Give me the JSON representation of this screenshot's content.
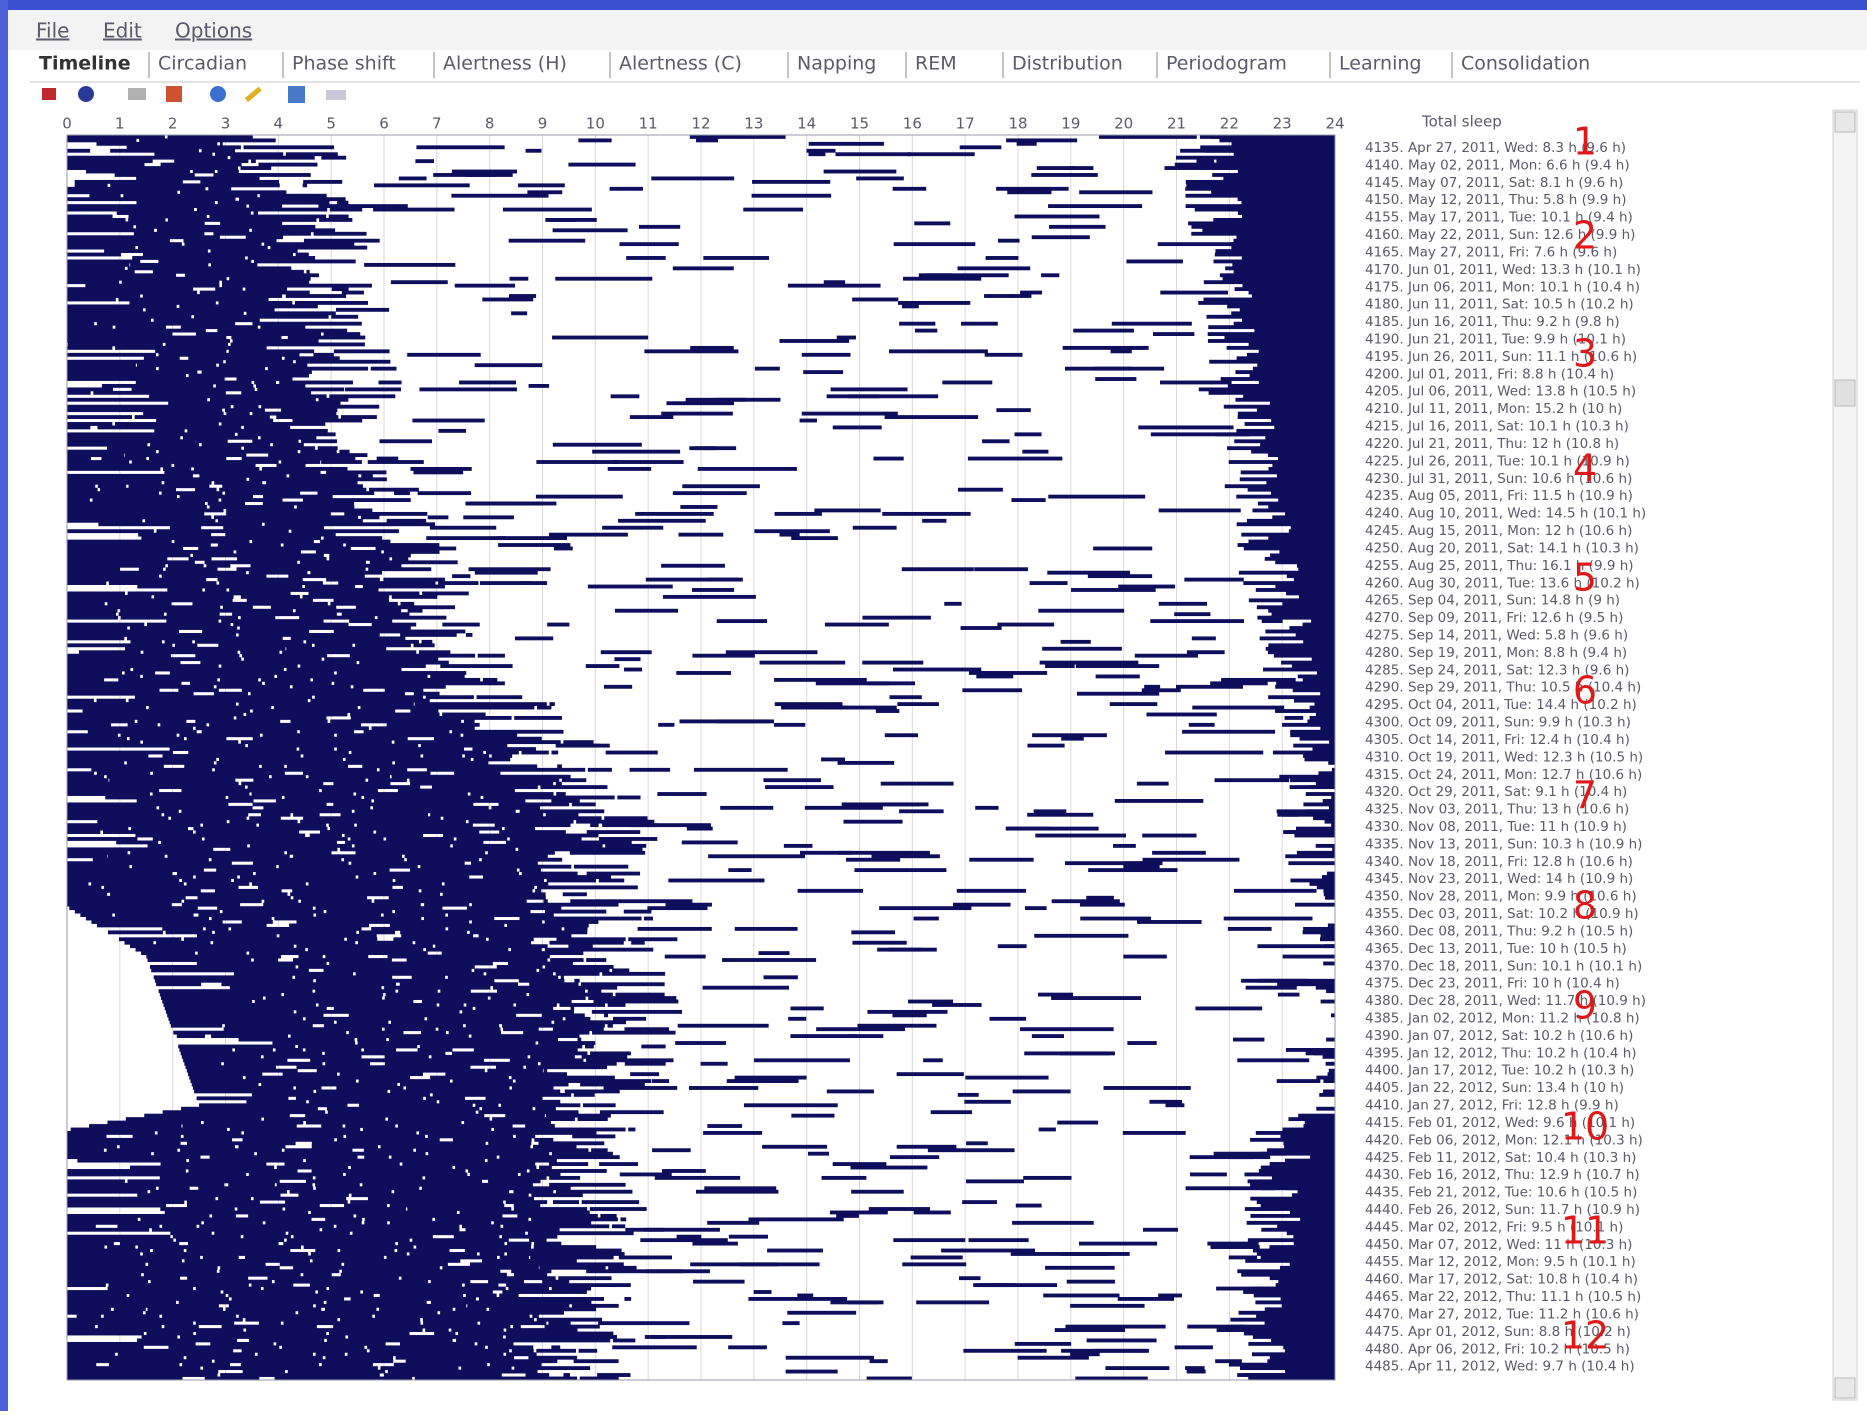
{
  "menu": [
    "File",
    "Edit",
    "Options"
  ],
  "tabs": [
    "Timeline",
    "Circadian",
    "Phase shift",
    "Alertness (H)",
    "Alertness (C)",
    "Napping",
    "REM",
    "Distribution",
    "Periodogram",
    "Learning",
    "Consolidation"
  ],
  "timeline": {
    "hours": [
      0,
      1,
      2,
      3,
      4,
      5,
      6,
      7,
      8,
      9,
      10,
      11,
      12,
      13,
      14,
      15,
      16,
      17,
      18,
      19,
      20,
      21,
      22,
      23,
      24
    ],
    "total_sleep_header": "Total sleep",
    "rows": [
      "4135. Apr 27, 2011, Wed: 8.3 h (9.6 h)",
      "4140. May 02, 2011, Mon: 6.6 h (9.4 h)",
      "4145. May 07, 2011, Sat: 8.1 h (9.6 h)",
      "4150. May 12, 2011, Thu: 5.8 h (9.9 h)",
      "4155. May 17, 2011, Tue: 10.1 h (9.4 h)",
      "4160. May 22, 2011, Sun: 12.6 h (9.9 h)",
      "4165. May 27, 2011, Fri: 7.6 h (9.6 h)",
      "4170. Jun 01, 2011, Wed: 13.3 h (10.1 h)",
      "4175. Jun 06, 2011, Mon: 10.1 h (10.4 h)",
      "4180. Jun 11, 2011, Sat: 10.5 h (10.2 h)",
      "4185. Jun 16, 2011, Thu: 9.2 h (9.8 h)",
      "4190. Jun 21, 2011, Tue: 9.9 h (10.1 h)",
      "4195. Jun 26, 2011, Sun: 11.1 h (10.6 h)",
      "4200. Jul 01, 2011, Fri: 8.8 h (10.4 h)",
      "4205. Jul 06, 2011, Wed: 13.8 h (10.5 h)",
      "4210. Jul 11, 2011, Mon: 15.2 h (10 h)",
      "4215. Jul 16, 2011, Sat: 10.1 h (10.3 h)",
      "4220. Jul 21, 2011, Thu: 12 h (10.8 h)",
      "4225. Jul 26, 2011, Tue: 10.1 h (10.9 h)",
      "4230. Jul 31, 2011, Sun: 10.6 h (10.6 h)",
      "4235. Aug 05, 2011, Fri: 11.5 h (10.9 h)",
      "4240. Aug 10, 2011, Wed: 14.5 h (10.1 h)",
      "4245. Aug 15, 2011, Mon: 12 h (10.6 h)",
      "4250. Aug 20, 2011, Sat: 14.1 h (10.3 h)",
      "4255. Aug 25, 2011, Thu: 16.1 h (9.9 h)",
      "4260. Aug 30, 2011, Tue: 13.6 h (10.2 h)",
      "4265. Sep 04, 2011, Sun: 14.8 h (9 h)",
      "4270. Sep 09, 2011, Fri: 12.6 h (9.5 h)",
      "4275. Sep 14, 2011, Wed: 5.8 h (9.6 h)",
      "4280. Sep 19, 2011, Mon: 8.8 h (9.4 h)",
      "4285. Sep 24, 2011, Sat: 12.3 h (9.6 h)",
      "4290. Sep 29, 2011, Thu: 10.5 h (10.4 h)",
      "4295. Oct 04, 2011, Tue: 14.4 h (10.2 h)",
      "4300. Oct 09, 2011, Sun: 9.9 h (10.3 h)",
      "4305. Oct 14, 2011, Fri: 12.4 h (10.4 h)",
      "4310. Oct 19, 2011, Wed: 12.3 h (10.5 h)",
      "4315. Oct 24, 2011, Mon: 12.7 h (10.6 h)",
      "4320. Oct 29, 2011, Sat: 9.1 h (10.4 h)",
      "4325. Nov 03, 2011, Thu: 13 h (10.6 h)",
      "4330. Nov 08, 2011, Tue: 11 h (10.9 h)",
      "4335. Nov 13, 2011, Sun: 10.3 h (10.9 h)",
      "4340. Nov 18, 2011, Fri: 12.8 h (10.6 h)",
      "4345. Nov 23, 2011, Wed: 14 h (10.9 h)",
      "4350. Nov 28, 2011, Mon: 9.9 h (10.6 h)",
      "4355. Dec 03, 2011, Sat: 10.2 h (10.9 h)",
      "4360. Dec 08, 2011, Thu: 9.2 h (10.5 h)",
      "4365. Dec 13, 2011, Tue: 10 h (10.5 h)",
      "4370. Dec 18, 2011, Sun: 10.1 h (10.1 h)",
      "4375. Dec 23, 2011, Fri: 10 h (10.4 h)",
      "4380. Dec 28, 2011, Wed: 11.7 h (10.9 h)",
      "4385. Jan 02, 2012, Mon: 11.2 h (10.8 h)",
      "4390. Jan 07, 2012, Sat: 10.2 h (10.6 h)",
      "4395. Jan 12, 2012, Thu: 10.2 h (10.4 h)",
      "4400. Jan 17, 2012, Tue: 10.2 h (10.3 h)",
      "4405. Jan 22, 2012, Sun: 13.4 h (10 h)",
      "4410. Jan 27, 2012, Fri: 12.8 h (9.9 h)",
      "4415. Feb 01, 2012, Wed: 9.6 h (10.1 h)",
      "4420. Feb 06, 2012, Mon: 12.1 h (10.3 h)",
      "4425. Feb 11, 2012, Sat: 10.4 h (10.3 h)",
      "4430. Feb 16, 2012, Thu: 12.9 h (10.7 h)",
      "4435. Feb 21, 2012, Tue: 10.6 h (10.5 h)",
      "4440. Feb 26, 2012, Sun: 11.7 h (10.9 h)",
      "4445. Mar 02, 2012, Fri: 9.5 h (10.1 h)",
      "4450. Mar 07, 2012, Wed: 11 h (10.3 h)",
      "4455. Mar 12, 2012, Mon: 9.5 h (10.1 h)",
      "4460. Mar 17, 2012, Sat: 10.8 h (10.4 h)",
      "4465. Mar 22, 2012, Thu: 11.1 h (10.5 h)",
      "4470. Mar 27, 2012, Tue: 11.2 h (10.6 h)",
      "4475. Apr 01, 2012, Sun: 8.8 h (10.2 h)",
      "4480. Apr 06, 2012, Fri: 10.2 h (10.5 h)",
      "4485. Apr 11, 2012, Wed: 9.7 h (10.4 h)"
    ],
    "annotations": [
      "1",
      "2",
      "3",
      "4",
      "5",
      "6",
      "7",
      "8",
      "9",
      "10",
      "11",
      "12"
    ]
  }
}
